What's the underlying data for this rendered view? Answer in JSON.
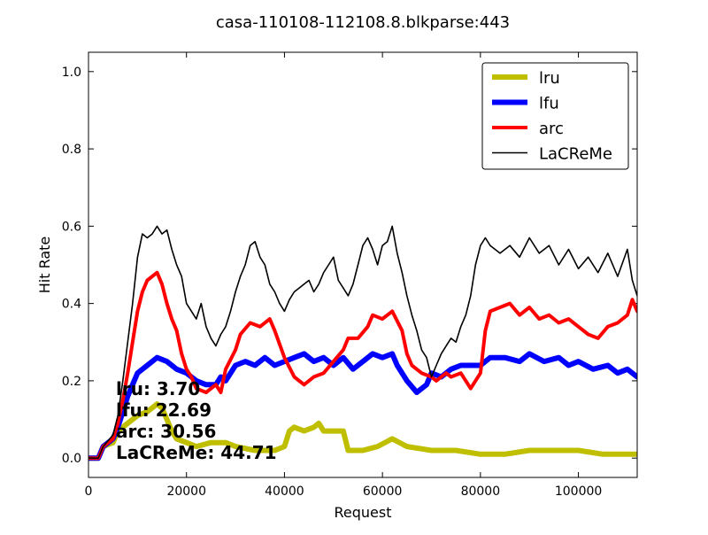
{
  "colors": {
    "lru": "#bfbf00",
    "lfu": "#0000ff",
    "arc": "#ff0000",
    "LaCReMe": "#000000"
  },
  "chart_data": {
    "type": "line",
    "title": "casa-110108-112108.8.blkparse:443",
    "xlabel": "Request",
    "ylabel": "Hit Rate",
    "xlim": [
      0,
      112000
    ],
    "ylim": [
      -0.05,
      1.05
    ],
    "xticks": [
      0,
      20000,
      40000,
      60000,
      80000,
      100000
    ],
    "yticks": [
      0.0,
      0.2,
      0.4,
      0.6,
      0.8,
      1.0
    ],
    "grid": false,
    "legend": "top-right",
    "series": [
      {
        "name": "lru",
        "stroke": "thick",
        "points": [
          [
            0,
            0.0
          ],
          [
            2000,
            0.0
          ],
          [
            3000,
            0.03
          ],
          [
            5000,
            0.04
          ],
          [
            6000,
            0.07
          ],
          [
            8000,
            0.09
          ],
          [
            10000,
            0.11
          ],
          [
            12000,
            0.12
          ],
          [
            14000,
            0.14
          ],
          [
            15000,
            0.13
          ],
          [
            16000,
            0.1
          ],
          [
            17000,
            0.07
          ],
          [
            18000,
            0.05
          ],
          [
            20000,
            0.04
          ],
          [
            22000,
            0.03
          ],
          [
            25000,
            0.04
          ],
          [
            28000,
            0.04
          ],
          [
            30000,
            0.03
          ],
          [
            34000,
            0.02
          ],
          [
            38000,
            0.02
          ],
          [
            40000,
            0.03
          ],
          [
            41000,
            0.07
          ],
          [
            42000,
            0.08
          ],
          [
            44000,
            0.07
          ],
          [
            46000,
            0.08
          ],
          [
            47000,
            0.09
          ],
          [
            48000,
            0.07
          ],
          [
            50000,
            0.07
          ],
          [
            52000,
            0.07
          ],
          [
            53000,
            0.02
          ],
          [
            56000,
            0.02
          ],
          [
            59000,
            0.03
          ],
          [
            62000,
            0.05
          ],
          [
            65000,
            0.03
          ],
          [
            70000,
            0.02
          ],
          [
            75000,
            0.02
          ],
          [
            80000,
            0.01
          ],
          [
            85000,
            0.01
          ],
          [
            90000,
            0.02
          ],
          [
            95000,
            0.02
          ],
          [
            100000,
            0.02
          ],
          [
            105000,
            0.01
          ],
          [
            110000,
            0.01
          ],
          [
            112000,
            0.01
          ]
        ]
      },
      {
        "name": "lfu",
        "stroke": "thick",
        "points": [
          [
            0,
            0.0
          ],
          [
            2000,
            0.0
          ],
          [
            3000,
            0.03
          ],
          [
            5000,
            0.05
          ],
          [
            6000,
            0.08
          ],
          [
            7000,
            0.12
          ],
          [
            8000,
            0.16
          ],
          [
            9000,
            0.19
          ],
          [
            10000,
            0.22
          ],
          [
            12000,
            0.24
          ],
          [
            14000,
            0.26
          ],
          [
            16000,
            0.25
          ],
          [
            18000,
            0.23
          ],
          [
            20000,
            0.22
          ],
          [
            22000,
            0.2
          ],
          [
            24000,
            0.19
          ],
          [
            26000,
            0.19
          ],
          [
            27000,
            0.21
          ],
          [
            28000,
            0.2
          ],
          [
            30000,
            0.24
          ],
          [
            32000,
            0.25
          ],
          [
            34000,
            0.24
          ],
          [
            36000,
            0.26
          ],
          [
            38000,
            0.24
          ],
          [
            40000,
            0.25
          ],
          [
            42000,
            0.26
          ],
          [
            44000,
            0.27
          ],
          [
            46000,
            0.25
          ],
          [
            48000,
            0.26
          ],
          [
            50000,
            0.24
          ],
          [
            52000,
            0.26
          ],
          [
            54000,
            0.23
          ],
          [
            56000,
            0.25
          ],
          [
            58000,
            0.27
          ],
          [
            60000,
            0.26
          ],
          [
            62000,
            0.27
          ],
          [
            63000,
            0.24
          ],
          [
            65000,
            0.2
          ],
          [
            67000,
            0.17
          ],
          [
            69000,
            0.19
          ],
          [
            70000,
            0.22
          ],
          [
            72000,
            0.21
          ],
          [
            74000,
            0.23
          ],
          [
            76000,
            0.24
          ],
          [
            78000,
            0.24
          ],
          [
            80000,
            0.24
          ],
          [
            82000,
            0.26
          ],
          [
            85000,
            0.26
          ],
          [
            88000,
            0.25
          ],
          [
            90000,
            0.27
          ],
          [
            93000,
            0.25
          ],
          [
            96000,
            0.26
          ],
          [
            98000,
            0.24
          ],
          [
            100000,
            0.25
          ],
          [
            103000,
            0.23
          ],
          [
            106000,
            0.24
          ],
          [
            108000,
            0.22
          ],
          [
            110000,
            0.23
          ],
          [
            112000,
            0.21
          ]
        ]
      },
      {
        "name": "arc",
        "stroke": "medium",
        "points": [
          [
            0,
            0.0
          ],
          [
            2000,
            0.0
          ],
          [
            3000,
            0.03
          ],
          [
            5000,
            0.05
          ],
          [
            6000,
            0.09
          ],
          [
            7000,
            0.15
          ],
          [
            8000,
            0.22
          ],
          [
            9000,
            0.3
          ],
          [
            10000,
            0.38
          ],
          [
            11000,
            0.43
          ],
          [
            12000,
            0.46
          ],
          [
            13000,
            0.47
          ],
          [
            14000,
            0.48
          ],
          [
            15000,
            0.45
          ],
          [
            16000,
            0.4
          ],
          [
            17000,
            0.36
          ],
          [
            18000,
            0.33
          ],
          [
            19000,
            0.27
          ],
          [
            20000,
            0.23
          ],
          [
            21000,
            0.21
          ],
          [
            22000,
            0.18
          ],
          [
            24000,
            0.17
          ],
          [
            26000,
            0.19
          ],
          [
            27000,
            0.17
          ],
          [
            28000,
            0.23
          ],
          [
            30000,
            0.28
          ],
          [
            31000,
            0.32
          ],
          [
            33000,
            0.35
          ],
          [
            35000,
            0.34
          ],
          [
            37000,
            0.36
          ],
          [
            38000,
            0.33
          ],
          [
            40000,
            0.26
          ],
          [
            42000,
            0.21
          ],
          [
            44000,
            0.19
          ],
          [
            46000,
            0.21
          ],
          [
            48000,
            0.22
          ],
          [
            50000,
            0.25
          ],
          [
            52000,
            0.28
          ],
          [
            53000,
            0.31
          ],
          [
            55000,
            0.31
          ],
          [
            57000,
            0.34
          ],
          [
            58000,
            0.37
          ],
          [
            60000,
            0.36
          ],
          [
            62000,
            0.38
          ],
          [
            64000,
            0.33
          ],
          [
            65000,
            0.27
          ],
          [
            66000,
            0.24
          ],
          [
            68000,
            0.22
          ],
          [
            70000,
            0.21
          ],
          [
            71000,
            0.2
          ],
          [
            73000,
            0.22
          ],
          [
            74000,
            0.21
          ],
          [
            76000,
            0.22
          ],
          [
            78000,
            0.18
          ],
          [
            80000,
            0.22
          ],
          [
            81000,
            0.33
          ],
          [
            82000,
            0.38
          ],
          [
            84000,
            0.39
          ],
          [
            86000,
            0.4
          ],
          [
            88000,
            0.37
          ],
          [
            90000,
            0.39
          ],
          [
            92000,
            0.36
          ],
          [
            94000,
            0.37
          ],
          [
            96000,
            0.35
          ],
          [
            98000,
            0.36
          ],
          [
            100000,
            0.34
          ],
          [
            102000,
            0.32
          ],
          [
            104000,
            0.31
          ],
          [
            106000,
            0.34
          ],
          [
            108000,
            0.35
          ],
          [
            110000,
            0.37
          ],
          [
            111000,
            0.41
          ],
          [
            112000,
            0.38
          ]
        ]
      },
      {
        "name": "LaCReMe",
        "stroke": "thin",
        "points": [
          [
            0,
            0.0
          ],
          [
            2000,
            0.0
          ],
          [
            3000,
            0.03
          ],
          [
            5000,
            0.06
          ],
          [
            6000,
            0.11
          ],
          [
            7000,
            0.2
          ],
          [
            8000,
            0.3
          ],
          [
            9000,
            0.4
          ],
          [
            10000,
            0.52
          ],
          [
            11000,
            0.58
          ],
          [
            12000,
            0.57
          ],
          [
            13000,
            0.58
          ],
          [
            14000,
            0.6
          ],
          [
            15000,
            0.58
          ],
          [
            16000,
            0.59
          ],
          [
            17000,
            0.54
          ],
          [
            18000,
            0.5
          ],
          [
            19000,
            0.47
          ],
          [
            20000,
            0.4
          ],
          [
            22000,
            0.36
          ],
          [
            23000,
            0.4
          ],
          [
            24000,
            0.34
          ],
          [
            25000,
            0.31
          ],
          [
            26000,
            0.29
          ],
          [
            27000,
            0.32
          ],
          [
            28000,
            0.34
          ],
          [
            29000,
            0.38
          ],
          [
            30000,
            0.43
          ],
          [
            31000,
            0.47
          ],
          [
            32000,
            0.5
          ],
          [
            33000,
            0.55
          ],
          [
            34000,
            0.56
          ],
          [
            35000,
            0.52
          ],
          [
            36000,
            0.5
          ],
          [
            37000,
            0.45
          ],
          [
            38000,
            0.43
          ],
          [
            39000,
            0.4
          ],
          [
            40000,
            0.38
          ],
          [
            41000,
            0.41
          ],
          [
            42000,
            0.43
          ],
          [
            43000,
            0.44
          ],
          [
            44000,
            0.45
          ],
          [
            45000,
            0.46
          ],
          [
            46000,
            0.43
          ],
          [
            47000,
            0.45
          ],
          [
            48000,
            0.48
          ],
          [
            49000,
            0.5
          ],
          [
            50000,
            0.52
          ],
          [
            51000,
            0.46
          ],
          [
            52000,
            0.44
          ],
          [
            53000,
            0.42
          ],
          [
            54000,
            0.45
          ],
          [
            55000,
            0.5
          ],
          [
            56000,
            0.55
          ],
          [
            57000,
            0.57
          ],
          [
            58000,
            0.54
          ],
          [
            59000,
            0.5
          ],
          [
            60000,
            0.55
          ],
          [
            61000,
            0.56
          ],
          [
            62000,
            0.6
          ],
          [
            63000,
            0.53
          ],
          [
            64000,
            0.48
          ],
          [
            65000,
            0.42
          ],
          [
            66000,
            0.37
          ],
          [
            67000,
            0.33
          ],
          [
            68000,
            0.28
          ],
          [
            69000,
            0.26
          ],
          [
            70000,
            0.21
          ],
          [
            71000,
            0.24
          ],
          [
            72000,
            0.27
          ],
          [
            73000,
            0.29
          ],
          [
            74000,
            0.31
          ],
          [
            75000,
            0.3
          ],
          [
            76000,
            0.34
          ],
          [
            77000,
            0.37
          ],
          [
            78000,
            0.42
          ],
          [
            79000,
            0.5
          ],
          [
            80000,
            0.55
          ],
          [
            81000,
            0.57
          ],
          [
            82000,
            0.55
          ],
          [
            84000,
            0.53
          ],
          [
            86000,
            0.55
          ],
          [
            88000,
            0.52
          ],
          [
            90000,
            0.57
          ],
          [
            92000,
            0.53
          ],
          [
            94000,
            0.55
          ],
          [
            96000,
            0.5
          ],
          [
            98000,
            0.54
          ],
          [
            100000,
            0.49
          ],
          [
            102000,
            0.52
          ],
          [
            104000,
            0.48
          ],
          [
            106000,
            0.53
          ],
          [
            108000,
            0.47
          ],
          [
            110000,
            0.54
          ],
          [
            111000,
            0.46
          ],
          [
            112000,
            0.42
          ]
        ]
      }
    ],
    "annotations": [
      {
        "label": "lru",
        "value": "3.70"
      },
      {
        "label": "lfu",
        "value": "22.69"
      },
      {
        "label": "arc",
        "value": "30.56"
      },
      {
        "label": "LaCReMe",
        "value": "44.71"
      }
    ]
  }
}
